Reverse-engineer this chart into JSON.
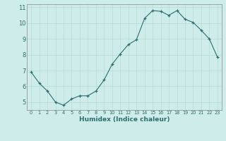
{
  "x": [
    0,
    1,
    2,
    3,
    4,
    5,
    6,
    7,
    8,
    9,
    10,
    11,
    12,
    13,
    14,
    15,
    16,
    17,
    18,
    19,
    20,
    21,
    22,
    23
  ],
  "y": [
    6.9,
    6.2,
    5.7,
    5.0,
    4.8,
    5.2,
    5.4,
    5.4,
    5.7,
    6.4,
    7.4,
    8.05,
    8.65,
    8.95,
    10.3,
    10.8,
    10.75,
    10.5,
    10.8,
    10.25,
    10.05,
    9.55,
    9.0,
    7.85
  ],
  "xlabel": "Humidex (Indice chaleur)",
  "xlim": [
    -0.5,
    23.5
  ],
  "ylim": [
    4.5,
    11.2
  ],
  "yticks": [
    5,
    6,
    7,
    8,
    9,
    10,
    11
  ],
  "xticks": [
    0,
    1,
    2,
    3,
    4,
    5,
    6,
    7,
    8,
    9,
    10,
    11,
    12,
    13,
    14,
    15,
    16,
    17,
    18,
    19,
    20,
    21,
    22,
    23
  ],
  "line_color": "#2d6e6e",
  "marker_color": "#2d6e6e",
  "bg_color": "#ceecea",
  "grid_color": "#b8dcd8",
  "tick_color": "#2d6e6e",
  "xlabel_fontsize": 6.5,
  "xtick_fontsize": 4.8,
  "ytick_fontsize": 6.0
}
